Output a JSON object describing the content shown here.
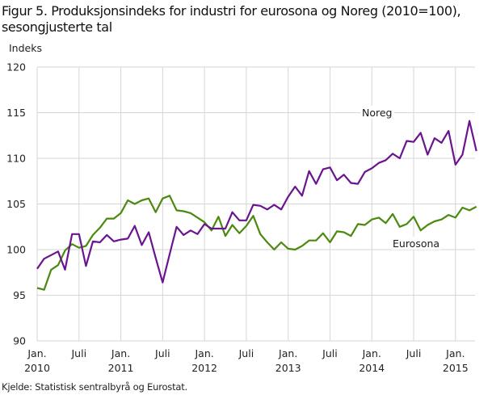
{
  "header": {
    "title_line1": "Figur 5. Produksjonsindeks for industri for eurosona og Noreg (2010=100),",
    "title_line2": "sesongjusterte tal",
    "y_axis_label": "Indeks"
  },
  "footer": {
    "source": "Kjelde: Statistisk sentralbyrå og Eurostat."
  },
  "colors": {
    "noreg": "#6b1490",
    "eurosona": "#4b8a0f",
    "grid": "#d6d6d6"
  },
  "chart_data": {
    "type": "line",
    "title": "Figur 5. Produksjonsindeks for industri for eurosona og Noreg (2010=100), sesongjusterte tal",
    "xlabel": "",
    "ylabel": "Indeks",
    "ylim": [
      90,
      120
    ],
    "yticks": [
      90,
      95,
      100,
      105,
      110,
      115,
      120
    ],
    "grid": true,
    "legend_position": "inline labels",
    "x_start": "2010-01",
    "x_end": "2015-04",
    "x_tick_labels": [
      {
        "line1": "Jan.",
        "line2": "2010"
      },
      {
        "line1": "Juli",
        "line2": ""
      },
      {
        "line1": "Jan.",
        "line2": "2011"
      },
      {
        "line1": "Juli",
        "line2": ""
      },
      {
        "line1": "Jan.",
        "line2": "2012"
      },
      {
        "line1": "Juli",
        "line2": ""
      },
      {
        "line1": "Jan.",
        "line2": "2013"
      },
      {
        "line1": "Juli",
        "line2": ""
      },
      {
        "line1": "Jan.",
        "line2": "2014"
      },
      {
        "line1": "Juli",
        "line2": ""
      },
      {
        "line1": "Jan.",
        "line2": "2015"
      }
    ],
    "series": [
      {
        "name": "Noreg",
        "values": [
          97.9,
          99.0,
          99.4,
          99.8,
          97.8,
          101.7,
          101.7,
          98.2,
          100.9,
          100.8,
          101.6,
          100.9,
          101.1,
          101.2,
          102.6,
          100.5,
          101.9,
          99.1,
          96.4,
          99.5,
          102.5,
          101.6,
          102.1,
          101.7,
          102.8,
          102.3,
          102.3,
          102.3,
          104.1,
          103.2,
          103.2,
          104.9,
          104.8,
          104.4,
          104.9,
          104.4,
          105.8,
          106.9,
          105.9,
          108.6,
          107.2,
          108.8,
          109.0,
          107.6,
          108.2,
          107.3,
          107.2,
          108.5,
          108.9,
          109.5,
          109.8,
          110.5,
          110.0,
          111.9,
          111.8,
          112.8,
          110.4,
          112.2,
          111.7,
          113.0,
          109.3,
          110.4,
          114.1,
          110.8
        ]
      },
      {
        "name": "Eurosona",
        "values": [
          95.8,
          95.6,
          97.8,
          98.3,
          99.9,
          100.6,
          100.2,
          100.4,
          101.6,
          102.4,
          103.4,
          103.4,
          104.0,
          105.4,
          105.0,
          105.4,
          105.6,
          104.1,
          105.6,
          105.9,
          104.3,
          104.2,
          104.0,
          103.5,
          103.0,
          102.1,
          103.6,
          101.5,
          102.7,
          101.8,
          102.6,
          103.7,
          101.7,
          100.8,
          100.0,
          100.8,
          100.1,
          100.0,
          100.4,
          101.0,
          101.0,
          101.8,
          100.8,
          102.0,
          101.9,
          101.5,
          102.8,
          102.7,
          103.3,
          103.5,
          102.9,
          103.9,
          102.5,
          102.8,
          103.6,
          102.1,
          102.7,
          103.1,
          103.3,
          103.8,
          103.5,
          104.6,
          104.3,
          104.7
        ]
      }
    ],
    "annotations": [
      {
        "text": "Noreg",
        "series": "Noreg"
      },
      {
        "text": "Eurosona",
        "series": "Eurosona"
      }
    ]
  }
}
